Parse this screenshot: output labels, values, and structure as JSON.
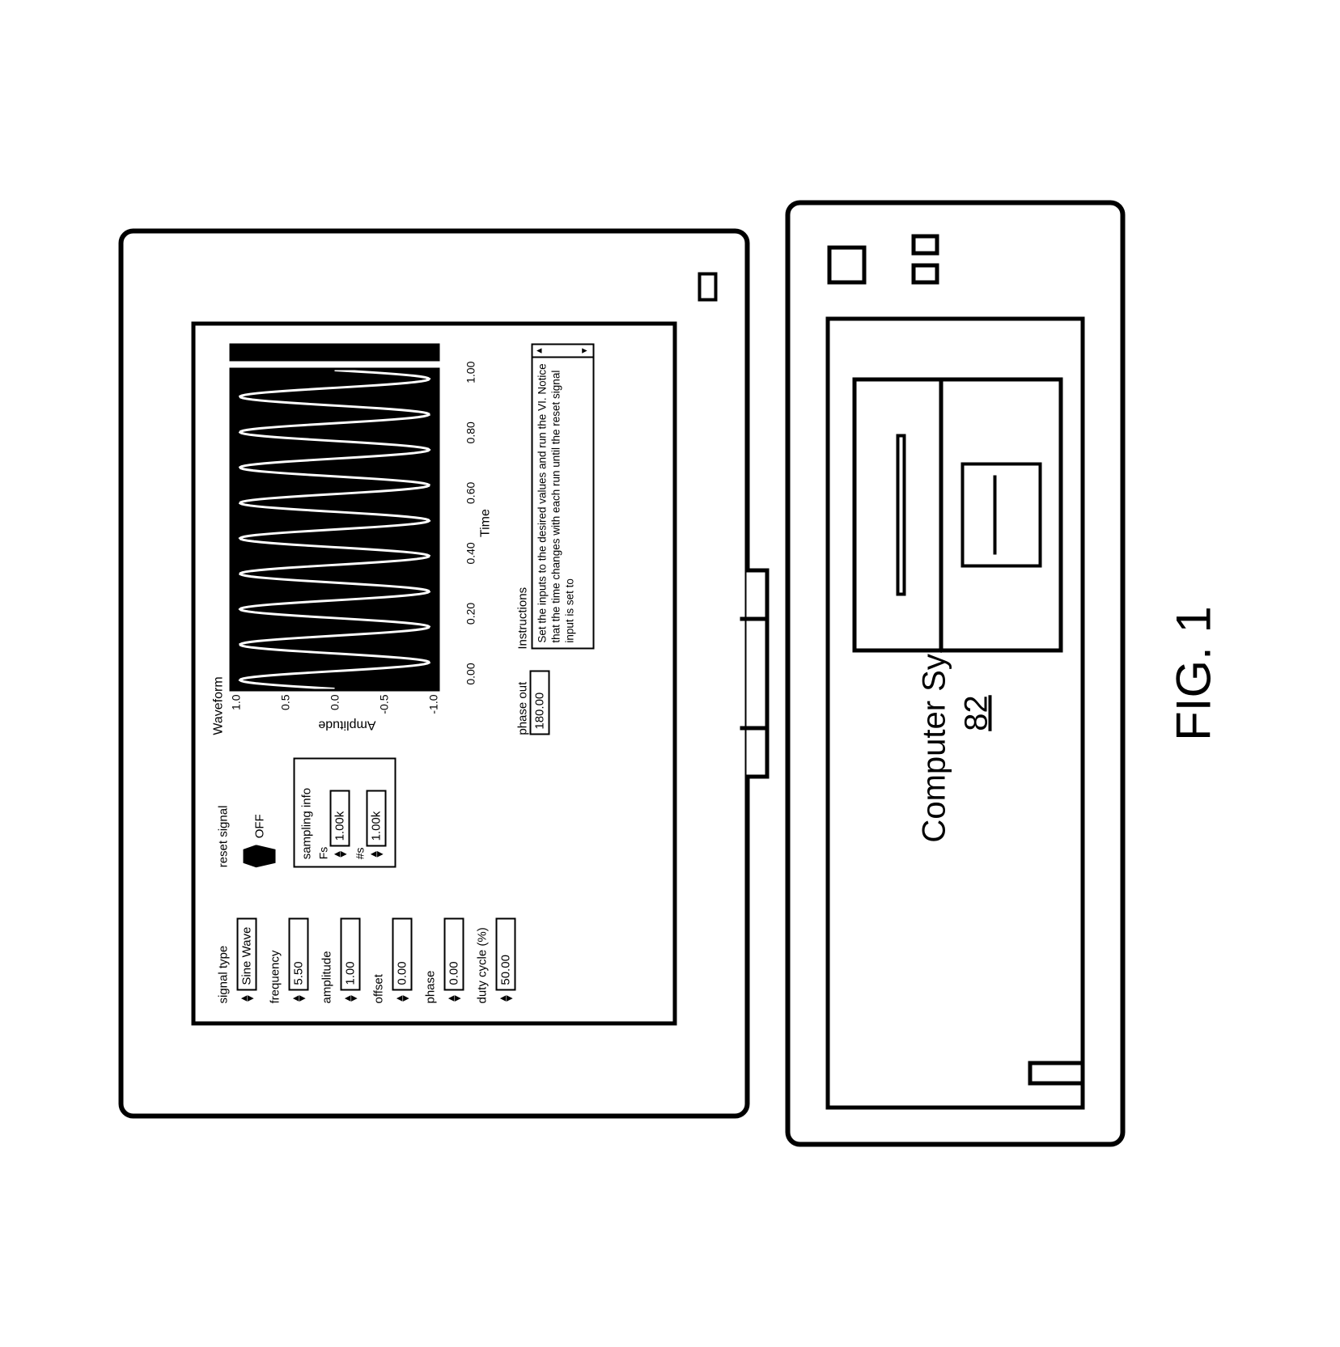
{
  "figure_label": "FIG. 1",
  "tower": {
    "label": "Computer System",
    "ref": "82"
  },
  "panel": {
    "signal_type": {
      "label": "signal type",
      "value": "Sine Wave"
    },
    "frequency": {
      "label": "frequency",
      "value": "5.50"
    },
    "amplitude": {
      "label": "amplitude",
      "value": "1.00"
    },
    "offset": {
      "label": "offset",
      "value": "0.00"
    },
    "phase": {
      "label": "phase",
      "value": "0.00"
    },
    "duty_cycle": {
      "label": "duty cycle (%)",
      "value": "50.00"
    },
    "reset": {
      "label": "reset signal",
      "state": "OFF"
    },
    "sampling": {
      "title": "sampling info",
      "fs": {
        "label": "Fs",
        "value": "1.00k"
      },
      "ns": {
        "label": "#s",
        "value": "1.00k"
      }
    },
    "phase_out": {
      "label": "phase out",
      "value": "180.00"
    },
    "instructions": {
      "title": "Instructions",
      "text": "Set the inputs to the desired values and run the VI. Notice that the time changes with each run until the reset signal input is set to"
    }
  },
  "chart": {
    "title": "Waveform",
    "ylabel": "Amplitude",
    "xlabel": "Time",
    "yticks": [
      "1.0",
      "0.5",
      "0.0",
      "-0.5",
      "-1.0"
    ],
    "xticks": [
      "0.00",
      "0.20",
      "0.40",
      "0.60",
      "0.80",
      "1.00"
    ],
    "series": {
      "color": "#ffffff",
      "background": "#000000",
      "stroke_width": 3,
      "cycles": 9,
      "ylim": [
        -1.0,
        1.0
      ],
      "xlim": [
        0.0,
        1.0
      ]
    }
  }
}
